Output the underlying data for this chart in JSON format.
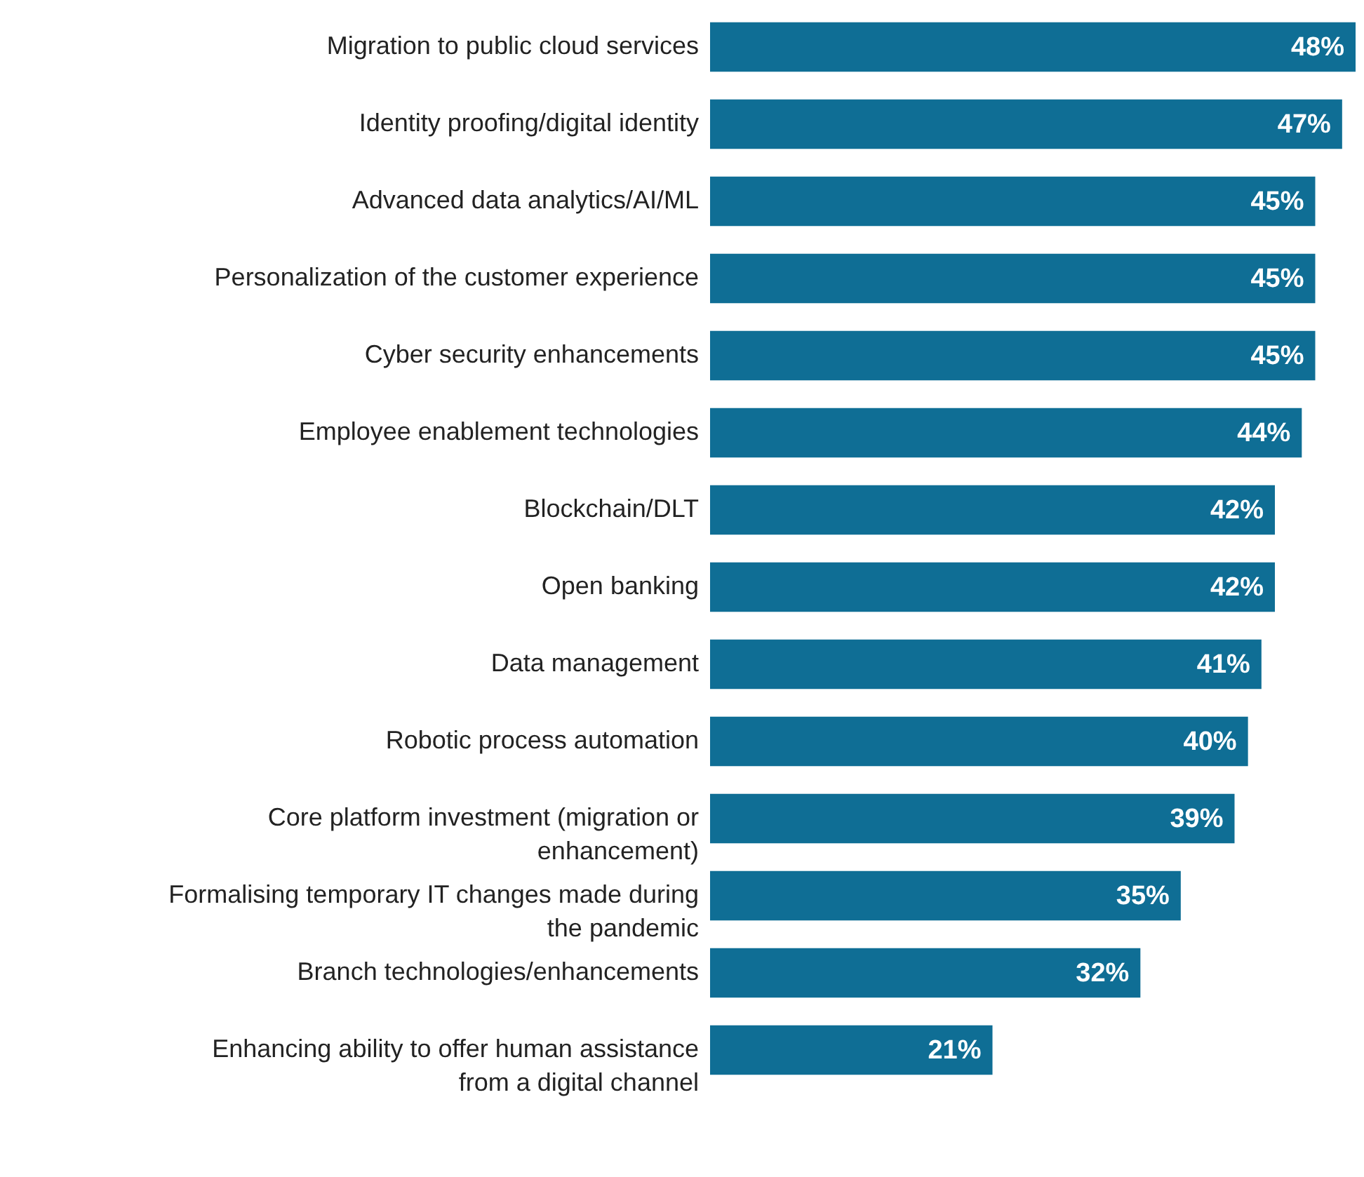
{
  "chart_data": {
    "type": "bar",
    "orientation": "horizontal",
    "categories": [
      "Migration to public cloud services",
      "Identity proofing/digital identity",
      "Advanced data analytics/AI/ML",
      "Personalization of the customer experience",
      "Cyber security enhancements",
      "Employee enablement technologies",
      "Blockchain/DLT",
      "Open banking",
      "Data management",
      "Robotic process automation",
      "Core platform investment (migration or enhancement)",
      "Formalising temporary IT changes made during the pandemic",
      "Branch technologies/enhancements",
      "Enhancing ability to offer human assistance from a digital channel"
    ],
    "values": [
      48,
      47,
      45,
      45,
      45,
      44,
      42,
      42,
      41,
      40,
      39,
      35,
      32,
      21
    ],
    "value_labels": [
      "48%",
      "47%",
      "45%",
      "45%",
      "45%",
      "44%",
      "42%",
      "42%",
      "41%",
      "40%",
      "39%",
      "35%",
      "32%",
      "21%"
    ],
    "color": "#0f6e95"
  }
}
